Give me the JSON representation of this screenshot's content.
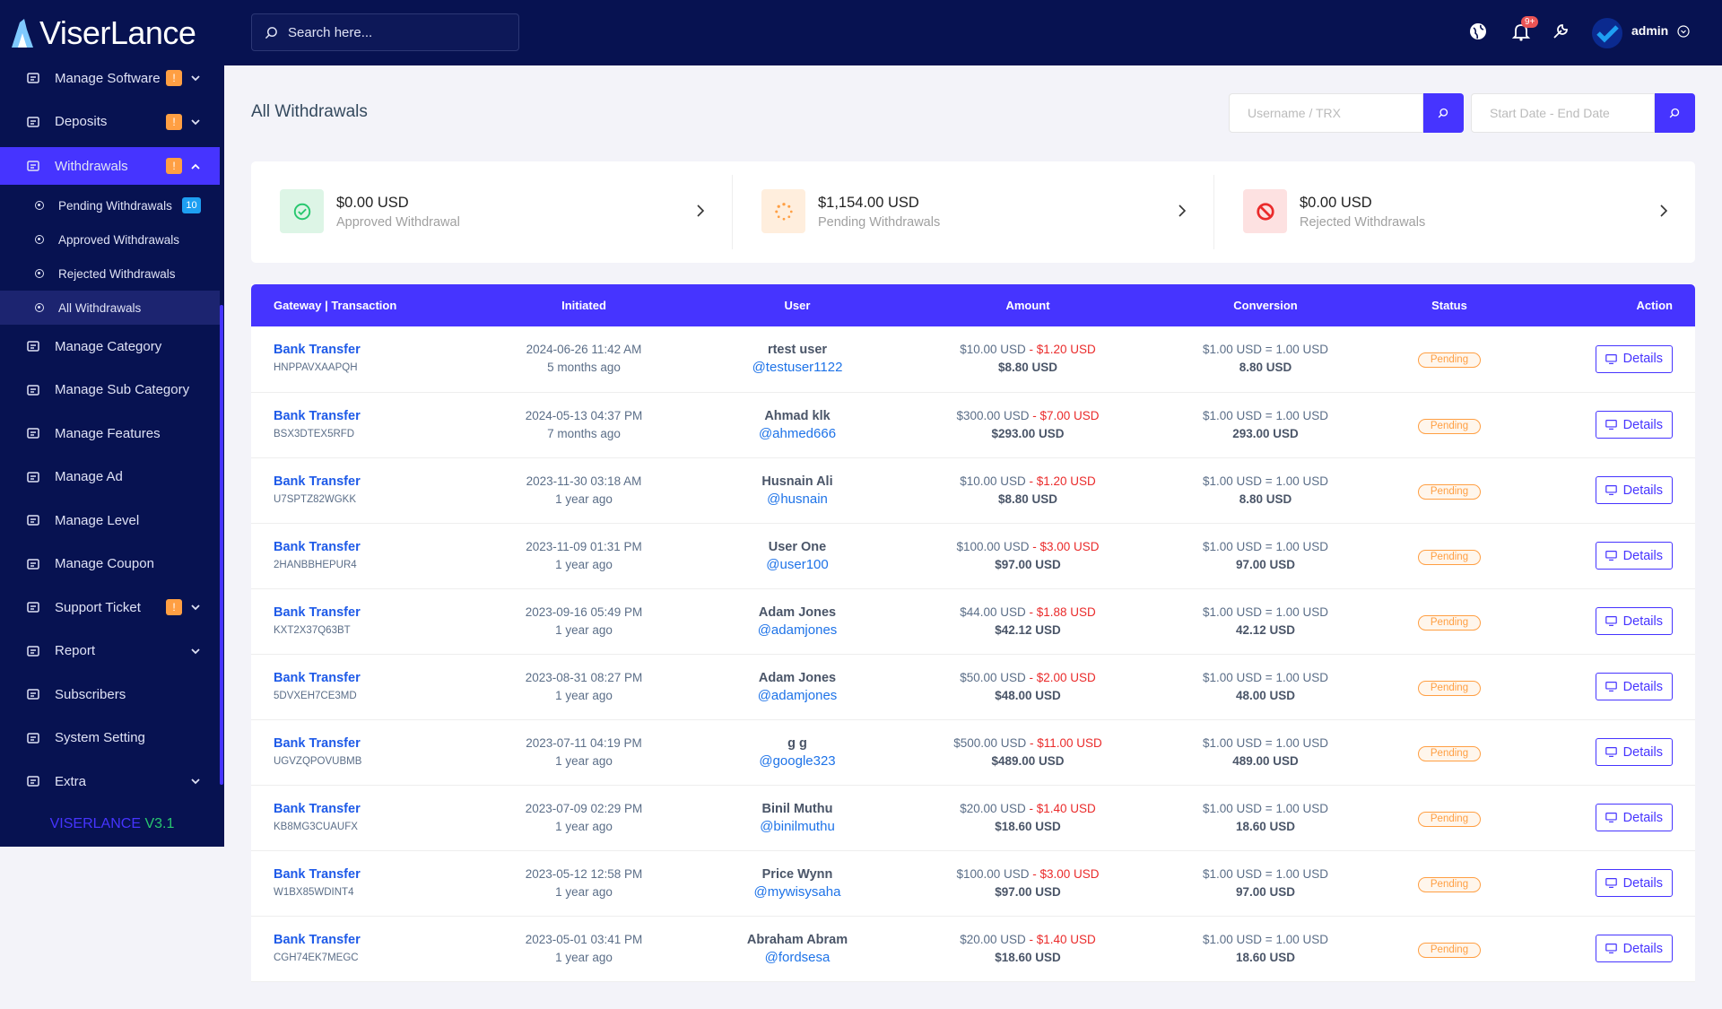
{
  "sidebar": {
    "logo": "ViserLance",
    "menu": [
      {
        "label": "Manage Software",
        "badge": "!",
        "expandable": true
      },
      {
        "label": "Deposits",
        "badge": "!",
        "expandable": true
      },
      {
        "label": "Withdrawals",
        "badge": "!",
        "expandable": true,
        "active": true,
        "children": [
          {
            "label": "Pending Withdrawals",
            "badge": "10"
          },
          {
            "label": "Approved Withdrawals"
          },
          {
            "label": "Rejected Withdrawals"
          },
          {
            "label": "All Withdrawals",
            "active": true
          }
        ]
      },
      {
        "label": "Manage Category"
      },
      {
        "label": "Manage Sub Category"
      },
      {
        "label": "Manage Features"
      },
      {
        "label": "Manage Ad"
      },
      {
        "label": "Manage Level"
      },
      {
        "label": "Manage Coupon"
      },
      {
        "label": "Support Ticket",
        "badge": "!",
        "expandable": true
      },
      {
        "label": "Report",
        "expandable": true
      },
      {
        "label": "Subscribers"
      },
      {
        "label": "System Setting"
      },
      {
        "label": "Extra",
        "expandable": true
      }
    ],
    "version_name": "VISERLANCE",
    "version_number": "V3.1"
  },
  "header": {
    "search_placeholder": "Search here...",
    "notification_count": "9+",
    "user": "admin"
  },
  "page": {
    "title": "All Withdrawals",
    "search_placeholder": "Username / TRX",
    "date_placeholder": "Start Date - End Date"
  },
  "cards": [
    {
      "value": "$0.00 USD",
      "label": "Approved Withdrawal"
    },
    {
      "value": "$1,154.00 USD",
      "label": "Pending Withdrawals"
    },
    {
      "value": "$0.00 USD",
      "label": "Rejected Withdrawals"
    }
  ],
  "table": {
    "columns": [
      "Gateway | Transaction",
      "Initiated",
      "User",
      "Amount",
      "Conversion",
      "Status",
      "Action"
    ],
    "rows": [
      {
        "gateway": "Bank Transfer",
        "trx": "HNPPAVXAAPQH",
        "date": "2024-06-26 11:42 AM",
        "ago": "5 months ago",
        "name": "rtest user",
        "username": "@testuser1122",
        "amount": "$10.00 USD",
        "charge": "- $1.20 USD",
        "net": "$8.80 USD",
        "rate": "$1.00 USD = 1.00 USD",
        "converted": "8.80 USD",
        "status": "Pending",
        "action": "Details"
      },
      {
        "gateway": "Bank Transfer",
        "trx": "BSX3DTEX5RFD",
        "date": "2024-05-13 04:37 PM",
        "ago": "7 months ago",
        "name": "Ahmad klk",
        "username": "@ahmed666",
        "amount": "$300.00 USD",
        "charge": "- $7.00 USD",
        "net": "$293.00 USD",
        "rate": "$1.00 USD = 1.00 USD",
        "converted": "293.00 USD",
        "status": "Pending",
        "action": "Details"
      },
      {
        "gateway": "Bank Transfer",
        "trx": "U7SPTZ82WGKK",
        "date": "2023-11-30 03:18 AM",
        "ago": "1 year ago",
        "name": "Husnain Ali",
        "username": "@husnain",
        "amount": "$10.00 USD",
        "charge": "- $1.20 USD",
        "net": "$8.80 USD",
        "rate": "$1.00 USD = 1.00 USD",
        "converted": "8.80 USD",
        "status": "Pending",
        "action": "Details"
      },
      {
        "gateway": "Bank Transfer",
        "trx": "2HANBBHEPUR4",
        "date": "2023-11-09 01:31 PM",
        "ago": "1 year ago",
        "name": "User One",
        "username": "@user100",
        "amount": "$100.00 USD",
        "charge": "- $3.00 USD",
        "net": "$97.00 USD",
        "rate": "$1.00 USD = 1.00 USD",
        "converted": "97.00 USD",
        "status": "Pending",
        "action": "Details"
      },
      {
        "gateway": "Bank Transfer",
        "trx": "KXT2X37Q63BT",
        "date": "2023-09-16 05:49 PM",
        "ago": "1 year ago",
        "name": "Adam Jones",
        "username": "@adamjones",
        "amount": "$44.00 USD",
        "charge": "- $1.88 USD",
        "net": "$42.12 USD",
        "rate": "$1.00 USD = 1.00 USD",
        "converted": "42.12 USD",
        "status": "Pending",
        "action": "Details"
      },
      {
        "gateway": "Bank Transfer",
        "trx": "5DVXEH7CE3MD",
        "date": "2023-08-31 08:27 PM",
        "ago": "1 year ago",
        "name": "Adam Jones",
        "username": "@adamjones",
        "amount": "$50.00 USD",
        "charge": "- $2.00 USD",
        "net": "$48.00 USD",
        "rate": "$1.00 USD = 1.00 USD",
        "converted": "48.00 USD",
        "status": "Pending",
        "action": "Details"
      },
      {
        "gateway": "Bank Transfer",
        "trx": "UGVZQPOVUBMB",
        "date": "2023-07-11 04:19 PM",
        "ago": "1 year ago",
        "name": "g g",
        "username": "@google323",
        "amount": "$500.00 USD",
        "charge": "- $11.00 USD",
        "net": "$489.00 USD",
        "rate": "$1.00 USD = 1.00 USD",
        "converted": "489.00 USD",
        "status": "Pending",
        "action": "Details"
      },
      {
        "gateway": "Bank Transfer",
        "trx": "KB8MG3CUAUFX",
        "date": "2023-07-09 02:29 PM",
        "ago": "1 year ago",
        "name": "Binil Muthu",
        "username": "@binilmuthu",
        "amount": "$20.00 USD",
        "charge": "- $1.40 USD",
        "net": "$18.60 USD",
        "rate": "$1.00 USD = 1.00 USD",
        "converted": "18.60 USD",
        "status": "Pending",
        "action": "Details"
      },
      {
        "gateway": "Bank Transfer",
        "trx": "W1BX85WDINT4",
        "date": "2023-05-12 12:58 PM",
        "ago": "1 year ago",
        "name": "Price Wynn",
        "username": "@mywisysaha",
        "amount": "$100.00 USD",
        "charge": "- $3.00 USD",
        "net": "$97.00 USD",
        "rate": "$1.00 USD = 1.00 USD",
        "converted": "97.00 USD",
        "status": "Pending",
        "action": "Details"
      },
      {
        "gateway": "Bank Transfer",
        "trx": "CGH74EK7MEGC",
        "date": "2023-05-01 03:41 PM",
        "ago": "1 year ago",
        "name": "Abraham Abram",
        "username": "@fordsesa",
        "amount": "$20.00 USD",
        "charge": "- $1.40 USD",
        "net": "$18.60 USD",
        "rate": "$1.00 USD = 1.00 USD",
        "converted": "18.60 USD",
        "status": "Pending",
        "action": "Details"
      }
    ]
  }
}
